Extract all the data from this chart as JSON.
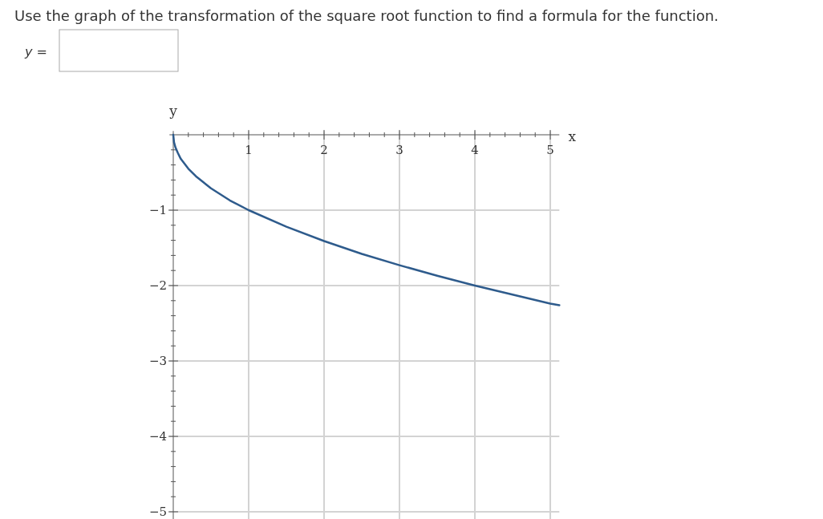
{
  "chart_data": {
    "type": "line",
    "title": "Use the graph of the transformation of the square root function to find a formula for the function.",
    "annotations": [
      "y ="
    ],
    "xlabel": "x",
    "ylabel": "y",
    "x": [
      0,
      0.01,
      0.03,
      0.06,
      0.1,
      0.2,
      0.3,
      0.5,
      0.75,
      1,
      1.5,
      2,
      2.5,
      3,
      3.5,
      4,
      4.5,
      5,
      5.12
    ],
    "series": [
      {
        "color": "#2e5b8c",
        "values": [
          0,
          -0.1,
          -0.17,
          -0.24,
          -0.32,
          -0.45,
          -0.55,
          -0.71,
          -0.87,
          -1,
          -1.22,
          -1.41,
          -1.58,
          -1.73,
          -1.87,
          -2,
          -2.12,
          -2.24,
          -2.26
        ]
      }
    ],
    "xlim": [
      -0.05,
      5.12
    ],
    "ylim": [
      -5.1,
      0.05
    ],
    "xticks": [
      {
        "value": 0.2,
        "label": null
      },
      {
        "value": 0.4,
        "label": null
      },
      {
        "value": 0.6,
        "label": null
      },
      {
        "value": 0.8,
        "label": null
      },
      1,
      {
        "value": 1.2,
        "label": null
      },
      {
        "value": 1.4,
        "label": null
      },
      {
        "value": 1.6,
        "label": null
      },
      {
        "value": 1.8,
        "label": null
      },
      2,
      {
        "value": 2.2,
        "label": null
      },
      {
        "value": 2.4,
        "label": null
      },
      {
        "value": 2.6,
        "label": null
      },
      {
        "value": 2.8,
        "label": null
      },
      3,
      {
        "value": 3.2,
        "label": null
      },
      {
        "value": 3.4,
        "label": null
      },
      {
        "value": 3.6,
        "label": null
      },
      {
        "value": 3.8,
        "label": null
      },
      4,
      {
        "value": 4.2,
        "label": null
      },
      {
        "value": 4.4,
        "label": null
      },
      {
        "value": 4.6,
        "label": null
      },
      {
        "value": 4.8,
        "label": null
      },
      5
    ],
    "yticks": [
      {
        "value": -0.2,
        "label": null
      },
      {
        "value": -0.4,
        "label": null
      },
      {
        "value": -0.6,
        "label": null
      },
      {
        "value": -0.8,
        "label": null
      },
      {
        "value": -1,
        "label": "−1"
      },
      {
        "value": -1.2,
        "label": null
      },
      {
        "value": -1.4,
        "label": null
      },
      {
        "value": -1.6,
        "label": null
      },
      {
        "value": -1.8,
        "label": null
      },
      {
        "value": -2,
        "label": "−2"
      },
      {
        "value": -2.2,
        "label": null
      },
      {
        "value": -2.4,
        "label": null
      },
      {
        "value": -2.6,
        "label": null
      },
      {
        "value": -2.8,
        "label": null
      },
      {
        "value": -3,
        "label": "−3"
      },
      {
        "value": -3.2,
        "label": null
      },
      {
        "value": -3.4,
        "label": null
      },
      {
        "value": -3.6,
        "label": null
      },
      {
        "value": -3.8,
        "label": null
      },
      {
        "value": -4,
        "label": "−4"
      },
      {
        "value": -4.2,
        "label": null
      },
      {
        "value": -4.4,
        "label": null
      },
      {
        "value": -4.6,
        "label": null
      },
      {
        "value": -4.8,
        "label": null
      },
      {
        "value": -5,
        "label": "−5"
      }
    ],
    "grid": true,
    "marker": "none",
    "line_style": "solid"
  }
}
